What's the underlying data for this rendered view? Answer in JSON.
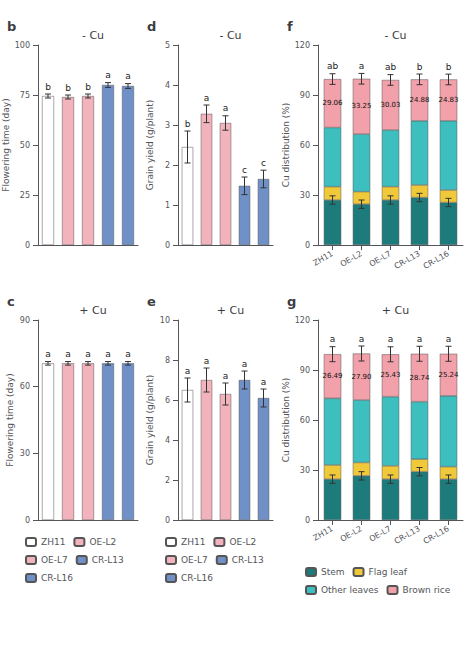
{
  "chart_data": [
    {
      "type": "bar",
      "title": "- Cu",
      "annotations": [
        "b"
      ],
      "categories": [
        "ZH11",
        "OE-L2",
        "OE-L7",
        "CR-L13",
        "CR-L16"
      ],
      "values": [
        74.5,
        74.0,
        74.5,
        80.0,
        79.5
      ],
      "errors": [
        1.0,
        1.0,
        1.0,
        1.2,
        1.2
      ],
      "letters": [
        "b",
        "b",
        "b",
        "a",
        "a"
      ],
      "colors": [
        "#ffffff",
        "#f2b3bc",
        "#f2b3bc",
        "#7090c8",
        "#7090c8"
      ],
      "ylabel": "Flowering time (day)",
      "ylim": [
        0,
        100
      ],
      "yticks": [
        0,
        25,
        50,
        75,
        100
      ],
      "grid": false,
      "tick_labels": "y"
    },
    {
      "type": "bar",
      "title": "- Cu",
      "annotations": [
        "d"
      ],
      "categories": [
        "ZH11",
        "OE-L2",
        "OE-L7",
        "CR-L13",
        "CR-L16"
      ],
      "values": [
        2.45,
        3.28,
        3.05,
        1.48,
        1.65
      ],
      "errors": [
        0.4,
        0.22,
        0.18,
        0.22,
        0.22
      ],
      "letters": [
        "b",
        "a",
        "a",
        "c",
        "c"
      ],
      "colors": [
        "#ffffff",
        "#f2b3bc",
        "#f2b3bc",
        "#7090c8",
        "#7090c8"
      ],
      "ylabel": "Grain yield (g/plant)",
      "ylim": [
        0,
        5
      ],
      "yticks": [
        0,
        1,
        2,
        3,
        4,
        5
      ],
      "grid": false,
      "tick_labels": "y"
    },
    {
      "type": "bar",
      "stacked": true,
      "title": "- Cu",
      "annotations": [
        "f"
      ],
      "categories": [
        "ZH11",
        "OE-L2",
        "OE-L7",
        "CR-L13",
        "CR-L16"
      ],
      "series": [
        {
          "name": "Stem",
          "color": "#1e7b7b",
          "values": [
            27.0,
            24.5,
            27.0,
            28.5,
            25.5
          ],
          "errors": [
            2.5,
            2.5,
            2.5,
            2.5,
            2.5
          ]
        },
        {
          "name": "Flag leaf",
          "color": "#f0c93a",
          "values": [
            8.0,
            7.5,
            8.0,
            7.5,
            7.5
          ]
        },
        {
          "name": "Other leaves",
          "color": "#3dbfbf",
          "values": [
            35.5,
            34.5,
            34.0,
            38.5,
            41.5
          ]
        },
        {
          "name": "Brown rice",
          "color": "#f2a0aa",
          "values": [
            29.06,
            33.25,
            30.03,
            24.88,
            24.83
          ],
          "errors": [
            3.2,
            3.2,
            3.2,
            3.2,
            3.2
          ],
          "data_labels": true,
          "value_labels": [
            "29.06",
            "33.25",
            "30.03",
            "24.88",
            "24.83"
          ]
        }
      ],
      "letters": [
        "ab",
        "a",
        "ab",
        "b",
        "b"
      ],
      "ylabel": "Cu distribution (%)",
      "ylim": [
        0,
        120
      ],
      "yticks": [
        0,
        30,
        60,
        90,
        120
      ],
      "grid": false
    },
    {
      "type": "bar",
      "title": "+ Cu",
      "annotations": [
        "c"
      ],
      "categories": [
        "ZH11",
        "OE-L2",
        "OE-L7",
        "CR-L13",
        "CR-L16"
      ],
      "values": [
        70.5,
        70.5,
        70.5,
        70.5,
        70.5
      ],
      "errors": [
        0.8,
        0.8,
        0.8,
        0.8,
        0.8
      ],
      "letters": [
        "a",
        "a",
        "a",
        "a",
        "a"
      ],
      "colors": [
        "#ffffff",
        "#f2b3bc",
        "#f2b3bc",
        "#7090c8",
        "#7090c8"
      ],
      "ylabel": "Flowering time (day)",
      "ylim": [
        0,
        90
      ],
      "yticks": [
        0,
        30,
        60,
        90
      ],
      "grid": false,
      "tick_labels": "y",
      "legend": "bottom"
    },
    {
      "type": "bar",
      "title": "+ Cu",
      "annotations": [
        "e"
      ],
      "categories": [
        "ZH11",
        "OE-L2",
        "OE-L7",
        "CR-L13",
        "CR-L16"
      ],
      "values": [
        6.5,
        7.0,
        6.3,
        7.0,
        6.1
      ],
      "errors": [
        0.6,
        0.6,
        0.55,
        0.45,
        0.45
      ],
      "letters": [
        "a",
        "a",
        "a",
        "a",
        "a"
      ],
      "colors": [
        "#ffffff",
        "#f2b3bc",
        "#f2b3bc",
        "#7090c8",
        "#7090c8"
      ],
      "ylabel": "Grain yield (g/plant)",
      "ylim": [
        0,
        10
      ],
      "yticks": [
        0,
        2,
        4,
        6,
        8,
        10
      ],
      "grid": false,
      "tick_labels": "y",
      "legend": "bottom"
    },
    {
      "type": "bar",
      "stacked": true,
      "title": "+ Cu",
      "annotations": [
        "g"
      ],
      "categories": [
        "ZH11",
        "OE-L2",
        "OE-L7",
        "CR-L13",
        "CR-L16"
      ],
      "series": [
        {
          "name": "Stem",
          "color": "#1e7b7b",
          "values": [
            24.5,
            26.5,
            24.5,
            29.0,
            24.5
          ],
          "errors": [
            2.5,
            2.5,
            2.5,
            2.5,
            2.5
          ]
        },
        {
          "name": "Flag leaf",
          "color": "#f0c93a",
          "values": [
            8.5,
            8.0,
            8.0,
            7.5,
            7.5
          ]
        },
        {
          "name": "Other leaves",
          "color": "#3dbfbf",
          "values": [
            40.0,
            37.5,
            41.5,
            34.5,
            42.5
          ]
        },
        {
          "name": "Brown rice",
          "color": "#f2a0aa",
          "values": [
            26.49,
            27.9,
            25.43,
            28.74,
            25.24
          ],
          "errors": [
            4.5,
            4.5,
            4.5,
            4.5,
            4.5
          ],
          "data_labels": true,
          "value_labels": [
            "26.49",
            "27.90",
            "25.43",
            "28.74",
            "25.24"
          ]
        }
      ],
      "letters": [
        "a",
        "a",
        "a",
        "a",
        "a"
      ],
      "ylabel": "Cu distribution (%)",
      "ylim": [
        0,
        120
      ],
      "yticks": [
        0,
        30,
        60,
        90,
        120
      ],
      "grid": false,
      "legend": "bottom"
    }
  ]
}
